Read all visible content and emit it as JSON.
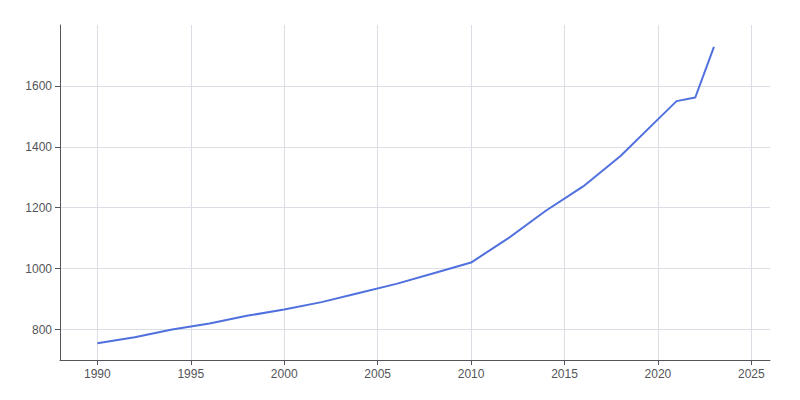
{
  "chart_data": {
    "type": "line",
    "x": [
      1990,
      1992,
      1994,
      1996,
      1998,
      2000,
      2002,
      2004,
      2006,
      2008,
      2010,
      2012,
      2014,
      2016,
      2018,
      2020,
      2021,
      2022,
      2023
    ],
    "values": [
      755,
      775,
      800,
      820,
      845,
      866,
      890,
      920,
      950,
      985,
      1020,
      1100,
      1190,
      1270,
      1370,
      1490,
      1550,
      1562,
      1728
    ],
    "xlim": [
      1988,
      2026
    ],
    "ylim": [
      700,
      1800
    ],
    "xticks": [
      1990,
      1995,
      2000,
      2005,
      2010,
      2015,
      2020,
      2025
    ],
    "yticks": [
      800,
      1000,
      1200,
      1400,
      1600
    ],
    "grid": true
  }
}
